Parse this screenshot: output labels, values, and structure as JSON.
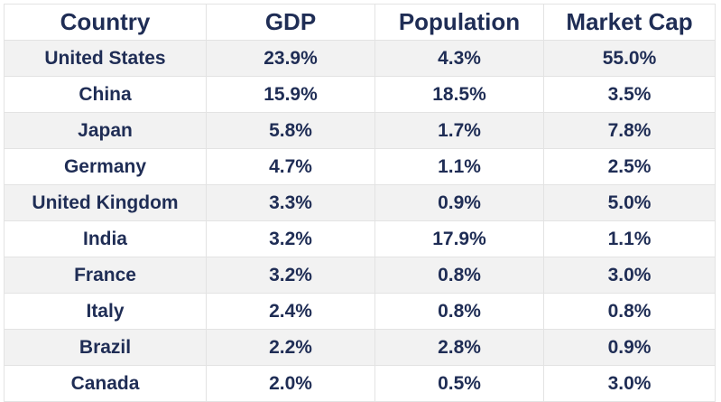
{
  "chart_data": {
    "type": "table",
    "columns": [
      "Country",
      "GDP",
      "Population",
      "Market Cap"
    ],
    "rows": [
      [
        "United States",
        "23.9%",
        "4.3%",
        "55.0%"
      ],
      [
        "China",
        "15.9%",
        "18.5%",
        "3.5%"
      ],
      [
        "Japan",
        "5.8%",
        "1.7%",
        "7.8%"
      ],
      [
        "Germany",
        "4.7%",
        "1.1%",
        "2.5%"
      ],
      [
        "United Kingdom",
        "3.3%",
        "0.9%",
        "5.0%"
      ],
      [
        "India",
        "3.2%",
        "17.9%",
        "1.1%"
      ],
      [
        "France",
        "3.2%",
        "0.8%",
        "3.0%"
      ],
      [
        "Italy",
        "2.4%",
        "0.8%",
        "0.8%"
      ],
      [
        "Brazil",
        "2.2%",
        "2.8%",
        "0.9%"
      ],
      [
        "Canada",
        "2.0%",
        "0.5%",
        "3.0%"
      ]
    ],
    "colors": {
      "text": "#1f2d55",
      "stripe": "#f2f2f2",
      "border": "#e3e3e3"
    }
  }
}
